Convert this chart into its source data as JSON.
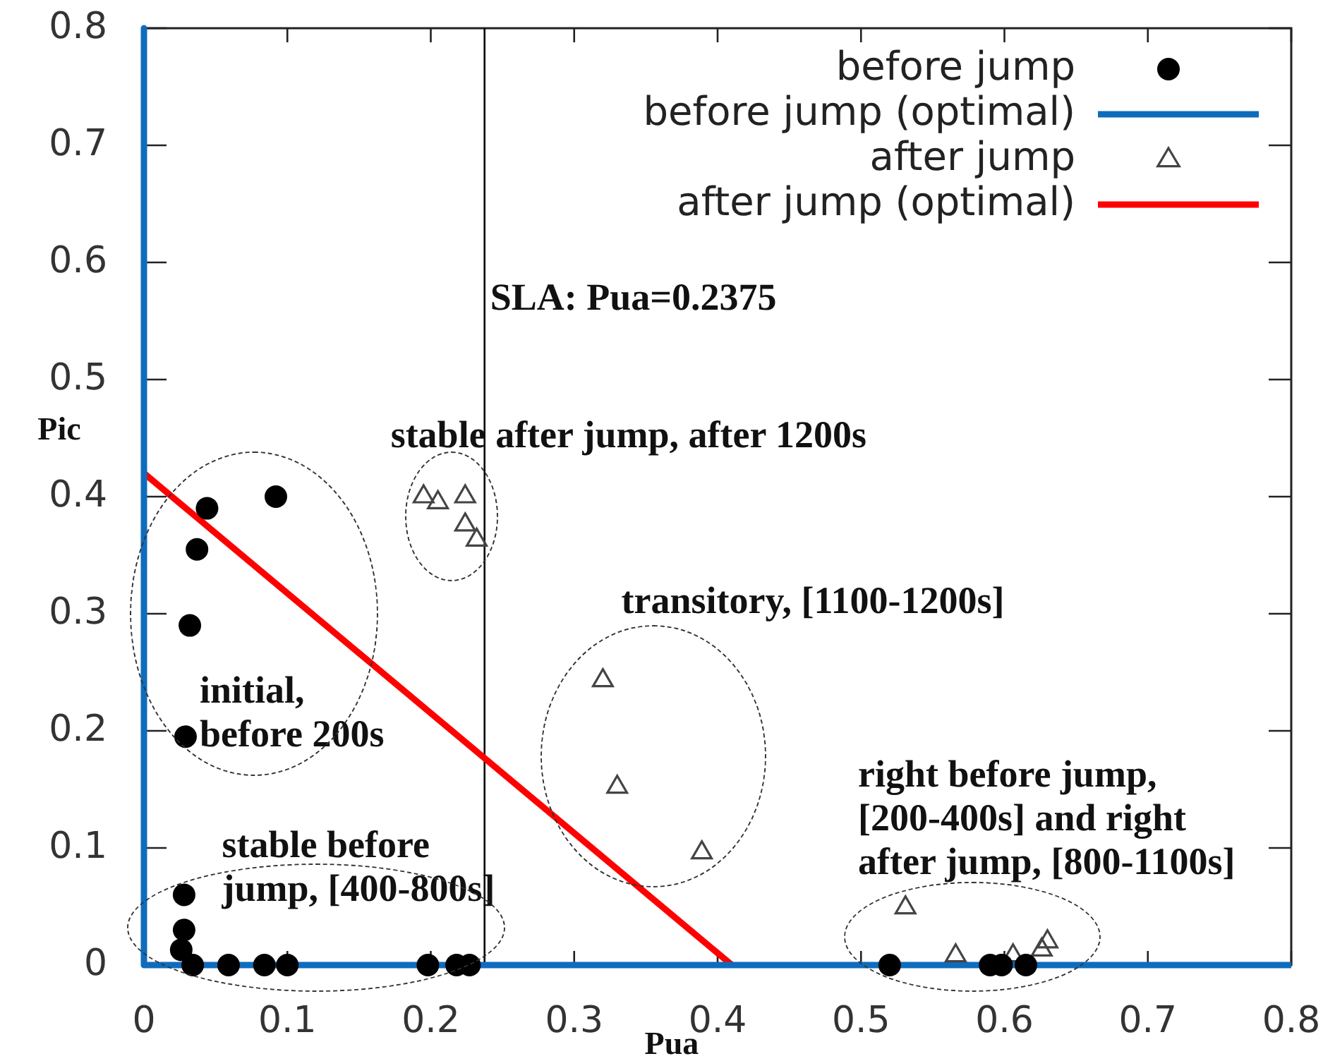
{
  "chart_data": {
    "type": "scatter",
    "xlabel": "Pua",
    "ylabel": "Pic",
    "xlim": [
      0,
      0.8
    ],
    "ylim": [
      0,
      0.8
    ],
    "xticks": [
      0,
      0.1,
      0.2,
      0.3,
      0.4,
      0.5,
      0.6,
      0.7,
      0.8
    ],
    "yticks": [
      0,
      0.1,
      0.2,
      0.3,
      0.4,
      0.5,
      0.6,
      0.7,
      0.8
    ],
    "legend": "top right",
    "series": [
      {
        "name": "before jump",
        "marker": "circle",
        "color": "#000000",
        "x": [
          0.044,
          0.092,
          0.037,
          0.032,
          0.029,
          0.028,
          0.028,
          0.026,
          0.034,
          0.059,
          0.084,
          0.1,
          0.198,
          0.218,
          0.227,
          0.52,
          0.59,
          0.598,
          0.615
        ],
        "values": [
          0.39,
          0.4,
          0.355,
          0.29,
          0.195,
          0.06,
          0.03,
          0.013,
          0,
          0,
          0,
          0,
          0,
          0,
          0,
          0,
          0,
          0,
          0
        ]
      },
      {
        "name": "before jump (optimal)",
        "type": "line",
        "marker": "none",
        "line_style": "solid",
        "color": "#0f6cbd",
        "x": [
          0,
          0,
          0.8
        ],
        "values": [
          0.8,
          0,
          0
        ]
      },
      {
        "name": "after jump",
        "marker": "triangle",
        "color": "#444444",
        "x": [
          0.195,
          0.205,
          0.224,
          0.224,
          0.232,
          0.32,
          0.33,
          0.389,
          0.531,
          0.566,
          0.606,
          0.626,
          0.63
        ],
        "values": [
          0.4,
          0.395,
          0.4,
          0.376,
          0.363,
          0.243,
          0.152,
          0.096,
          0.049,
          0.008,
          0.008,
          0.013,
          0.02
        ]
      },
      {
        "name": "after jump (optimal)",
        "type": "line",
        "marker": "none",
        "line_style": "solid",
        "color": "#ff0000",
        "x": [
          0,
          0.41
        ],
        "values": [
          0.42,
          0
        ]
      }
    ],
    "ref_lines": [
      {
        "axis": "x",
        "value": 0.2375,
        "label": "SLA: Pua=0.2375",
        "color": "#000000"
      }
    ],
    "annotations": [
      "stable after jump, after 1200s",
      "transitory, [1100-1200s]",
      "initial,\nbefore 200s",
      "stable before\njump, [400-800s]",
      "right before jump,\n[200-400s] and right\nafter jump, [800-1100s]"
    ]
  }
}
